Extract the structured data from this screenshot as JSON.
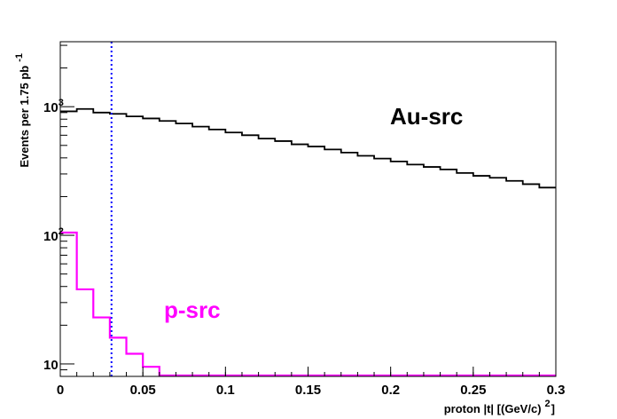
{
  "chart_data": {
    "type": "line",
    "style": "step-histogram",
    "xlabel": "proton |t| [(GeV/c)",
    "xlabel_exp": "2",
    "xlabel_close": "]",
    "ylabel": "Events per 1.75 pb",
    "ylabel_exp": "-1",
    "xlim": [
      0,
      0.3
    ],
    "ylim": [
      8,
      3200
    ],
    "yscale": "log",
    "grid": false,
    "x_ticks": [
      {
        "value": 0,
        "label": "0"
      },
      {
        "value": 0.05,
        "label": "0.05"
      },
      {
        "value": 0.1,
        "label": "0.1"
      },
      {
        "value": 0.15,
        "label": "0.15"
      },
      {
        "value": 0.2,
        "label": "0.2"
      },
      {
        "value": 0.25,
        "label": "0.25"
      },
      {
        "value": 0.3,
        "label": "0.3"
      }
    ],
    "y_ticks": [
      {
        "value": 10,
        "base": "10",
        "exp": ""
      },
      {
        "value": 100,
        "base": "10",
        "exp": "2"
      },
      {
        "value": 1000,
        "base": "10",
        "exp": "3"
      }
    ],
    "bin_edges": [
      0,
      0.01,
      0.02,
      0.03,
      0.04,
      0.05,
      0.06,
      0.07,
      0.08,
      0.09,
      0.1,
      0.11,
      0.12,
      0.13,
      0.14,
      0.15,
      0.16,
      0.17,
      0.18,
      0.19,
      0.2,
      0.21,
      0.22,
      0.23,
      0.24,
      0.25,
      0.26,
      0.27,
      0.28,
      0.29,
      0.3
    ],
    "series": [
      {
        "name": "Au-src",
        "color": "#000000",
        "values": [
          920,
          960,
          900,
          880,
          840,
          810,
          775,
          740,
          700,
          665,
          630,
          600,
          565,
          540,
          510,
          490,
          465,
          440,
          415,
          395,
          375,
          355,
          340,
          325,
          305,
          290,
          280,
          265,
          250,
          235
        ]
      },
      {
        "name": "p-src",
        "color": "#ff00ff",
        "values": [
          105,
          38,
          23,
          16,
          12,
          9.5,
          8,
          8,
          8,
          8,
          8,
          8,
          8,
          8,
          8,
          8,
          8,
          8,
          8,
          8,
          8,
          8,
          8,
          8,
          8,
          8,
          8,
          8,
          8,
          8
        ]
      }
    ],
    "annotations": [
      {
        "text": "Au-src",
        "color": "#000000"
      },
      {
        "text": "p-src",
        "color": "#ff00ff"
      }
    ],
    "cut_line": {
      "x": 0.031,
      "color": "#0000ff",
      "style": "dotted"
    }
  }
}
